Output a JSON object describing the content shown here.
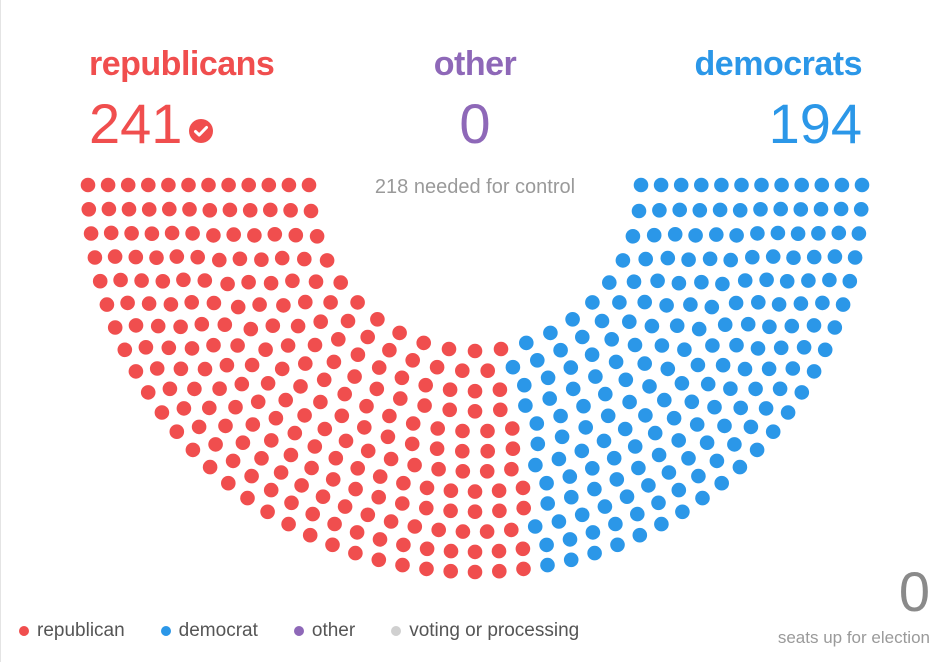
{
  "header": {
    "republicans_label": "republicans",
    "other_label": "other",
    "democrats_label": "democrats",
    "republicans_count": "241",
    "other_count": "0",
    "democrats_count": "194",
    "needed_text": "218 needed for control",
    "winner_icon": "checkmark-circle-icon"
  },
  "colors": {
    "republican": "#f04e4e",
    "democrat": "#2b97e8",
    "other": "#8e68b8",
    "voting": "#d0d0d0"
  },
  "chart_data": {
    "type": "parliament",
    "title": "",
    "total_seats": 435,
    "majority": 218,
    "series": [
      {
        "name": "republican",
        "values": [
          241
        ]
      },
      {
        "name": "democrat",
        "values": [
          194
        ]
      },
      {
        "name": "other",
        "values": [
          0
        ]
      },
      {
        "name": "voting or processing",
        "values": [
          0
        ]
      }
    ],
    "legend_position": "bottom-left"
  },
  "legend": {
    "items": [
      {
        "label": "republican",
        "color_key": "republican"
      },
      {
        "label": "democrat",
        "color_key": "democrat"
      },
      {
        "label": "other",
        "color_key": "other"
      },
      {
        "label": "voting or processing",
        "color_key": "voting"
      }
    ]
  },
  "footer": {
    "seats_up_count": "0",
    "seats_up_label": "seats up for election"
  }
}
